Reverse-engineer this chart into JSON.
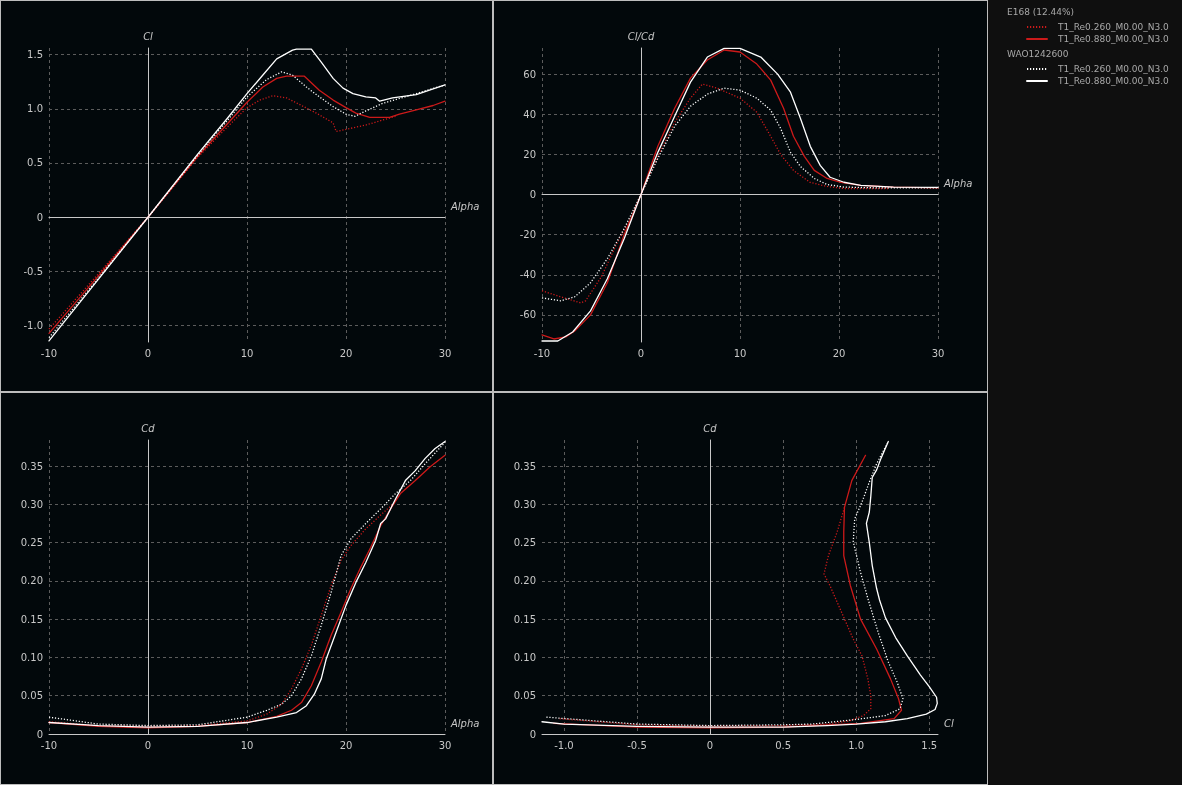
{
  "chart_data": [
    {
      "type": "line",
      "xlabel": "Alpha",
      "ylabel": "Cl",
      "xlim": [
        -10,
        30
      ],
      "xticks": [
        -10,
        0,
        10,
        20,
        30
      ],
      "ylim": [
        -1.15,
        1.56
      ],
      "yticks": [
        {
          "value": -1,
          "label": "-1.0"
        },
        -0.5,
        0,
        0.5,
        {
          "value": 1,
          "label": "1.0"
        },
        1.5
      ],
      "grid": true,
      "marker": "none",
      "series": [
        {
          "color": "#cc1a1a",
          "line_style": "dotted",
          "x": [
            -10,
            -5,
            0,
            5,
            8,
            10,
            11.3,
            12.6,
            14,
            15.3,
            17,
            18.7,
            19,
            20,
            22,
            25
          ],
          "values": [
            -1.03,
            -0.52,
            0,
            0.55,
            0.83,
            1.01,
            1.08,
            1.12,
            1.1,
            1.04,
            0.96,
            0.87,
            0.79,
            0.81,
            0.85,
            0.93
          ]
        },
        {
          "color": "#cc1a1a",
          "line_style": "solid",
          "x": [
            -10,
            -5,
            0,
            5,
            8,
            10,
            11.6,
            13,
            14,
            15.8,
            17.3,
            18.7,
            20,
            21,
            22.4,
            24.4,
            25.4,
            27.1,
            28.8,
            30
          ],
          "values": [
            -1.07,
            -0.54,
            0,
            0.56,
            0.86,
            1.06,
            1.2,
            1.28,
            1.3,
            1.3,
            1.17,
            1.08,
            1.01,
            0.96,
            0.92,
            0.92,
            0.95,
            0.99,
            1.03,
            1.07
          ]
        },
        {
          "color": "#ffffff",
          "line_style": "dotted",
          "x": [
            -10,
            -5,
            0,
            5,
            8,
            10,
            12,
            13.5,
            14.6,
            16,
            17.3,
            18.7,
            20,
            20.9,
            22,
            23.7,
            27.1,
            30
          ],
          "values": [
            -1.11,
            -0.56,
            0,
            0.57,
            0.89,
            1.11,
            1.27,
            1.34,
            1.31,
            1.2,
            1.11,
            1.02,
            0.95,
            0.93,
            0.98,
            1.05,
            1.14,
            1.22
          ]
        },
        {
          "color": "#ffffff",
          "line_style": "solid",
          "x": [
            -10,
            -5,
            0,
            5,
            8,
            10,
            11.5,
            13,
            14.6,
            15,
            16.5,
            17.5,
            18.7,
            19.7,
            20.7,
            22,
            23,
            23.4,
            24.7,
            27.1,
            30
          ],
          "values": [
            -1.14,
            -0.57,
            0,
            0.58,
            0.91,
            1.14,
            1.3,
            1.46,
            1.54,
            1.55,
            1.55,
            1.43,
            1.28,
            1.19,
            1.14,
            1.11,
            1.1,
            1.07,
            1.1,
            1.13,
            1.22
          ]
        }
      ]
    },
    {
      "type": "line",
      "xlabel": "Alpha",
      "ylabel": "Cl/Cd",
      "xlim": [
        -10,
        30
      ],
      "xticks": [
        -10,
        0,
        10,
        20,
        30
      ],
      "ylim": [
        -73.5,
        73
      ],
      "yticks": [
        -60,
        -40,
        -20,
        0,
        20,
        40,
        60
      ],
      "grid": true,
      "marker": "none",
      "legend": "top right",
      "annotations": [
        "E168 (12.44%)",
        "WAO1242600"
      ],
      "series": [
        {
          "name": "T1_Re0.260_M0.00_N3.0",
          "color": "#cc1a1a",
          "line_style": "dotted",
          "x": [
            -10,
            -8.1,
            -6.1,
            -5.6,
            -4,
            -2.4,
            -0.7,
            0,
            1.7,
            3.4,
            5,
            6.2,
            7.7,
            10,
            11.7,
            13.1,
            14.1,
            15.4,
            17.1,
            18.8,
            20.5,
            23.8,
            25
          ],
          "values": [
            -48,
            -51,
            -54,
            -53,
            -41,
            -24,
            -9,
            0,
            19,
            36,
            48,
            55,
            53,
            48,
            41,
            29,
            20,
            12,
            6,
            4,
            3,
            3,
            3
          ]
        },
        {
          "name": "T1_Re0.880_M0.00_N3.0",
          "color": "#cc1a1a",
          "line_style": "solid",
          "x": [
            -10,
            -8.8,
            -7.6,
            -6.7,
            -5.1,
            -3.4,
            -1.7,
            0,
            1.7,
            3.4,
            5,
            6.7,
            8.4,
            10,
            11.7,
            13.1,
            14.4,
            15.4,
            16.5,
            17.5,
            18.8,
            20.2,
            22.2,
            25.5,
            30
          ],
          "values": [
            -70,
            -72,
            -71,
            -68,
            -60,
            -44,
            -20,
            0,
            24,
            43,
            58,
            67,
            72,
            71,
            65,
            57,
            43,
            29,
            19,
            12,
            8,
            6,
            4.5,
            3.7,
            3.3
          ]
        },
        {
          "name": "T1_Re0.260_M0.00_N3.0",
          "color": "#ffffff",
          "line_style": "dotted",
          "x": [
            -10,
            -8.1,
            -6.7,
            -5.1,
            -3.4,
            -1.7,
            0,
            1.7,
            3.4,
            5,
            6.7,
            8.4,
            10,
            11.7,
            13.1,
            14.1,
            15.1,
            16.1,
            17.5,
            18.8,
            20.5,
            23.8,
            30
          ],
          "values": [
            -51.5,
            -53,
            -51,
            -44,
            -32,
            -17,
            0,
            18,
            34,
            44,
            50,
            53,
            52,
            48,
            42,
            33,
            21,
            14,
            8,
            5,
            3.7,
            3.3,
            3.3
          ]
        },
        {
          "name": "T1_Re0.880_M0.00_N3.0",
          "color": "#ffffff",
          "line_style": "solid",
          "x": [
            -10,
            -8.4,
            -6.9,
            -5.1,
            -3.4,
            -1.7,
            0,
            1.7,
            3.4,
            5,
            6.7,
            8.4,
            10,
            12.1,
            13.8,
            15.1,
            16.1,
            17.1,
            18.1,
            19.1,
            20.5,
            22.2,
            25.5,
            30
          ],
          "values": [
            -73,
            -73,
            -68.5,
            -58,
            -42,
            -22,
            0,
            21,
            39,
            56,
            68.5,
            72.8,
            72.8,
            68.5,
            60,
            51,
            38,
            24,
            14.5,
            8.6,
            6.1,
            4.5,
            3.7,
            3.5
          ]
        }
      ]
    },
    {
      "type": "line",
      "xlabel": "Alpha",
      "ylabel": "Cd",
      "xlim": [
        -10,
        30
      ],
      "xticks": [
        -10,
        0,
        10,
        20,
        30
      ],
      "ylim": [
        0,
        0.384
      ],
      "yticks": [
        0,
        0.05,
        {
          "value": 0.1,
          "label": "0.10"
        },
        0.15,
        {
          "value": 0.2,
          "label": "0.20"
        },
        0.25,
        {
          "value": 0.3,
          "label": "0.30"
        },
        0.35
      ],
      "grid": true,
      "marker": "none",
      "series": [
        {
          "color": "#cc1a1a",
          "line_style": "dotted",
          "x": [
            -10,
            -5,
            0,
            5,
            10,
            12,
            13.5,
            14.5,
            15.5,
            16.5,
            17.5,
            18.5,
            19.5,
            20.5,
            22,
            23.5,
            25
          ],
          "values": [
            0.016,
            0.011,
            0.01,
            0.011,
            0.017,
            0.026,
            0.039,
            0.059,
            0.085,
            0.116,
            0.155,
            0.194,
            0.227,
            0.246,
            0.268,
            0.286,
            0.303
          ]
        },
        {
          "color": "#cc1a1a",
          "line_style": "solid",
          "x": [
            -10,
            -5,
            0,
            5,
            10,
            13,
            14.5,
            15.5,
            16.5,
            17.5,
            18.5,
            19.5,
            20.5,
            21.5,
            22.5,
            23.5,
            24.5,
            25.5,
            27,
            28.5,
            30
          ],
          "values": [
            0.015,
            0.01,
            0.008,
            0.01,
            0.015,
            0.023,
            0.031,
            0.041,
            0.063,
            0.094,
            0.129,
            0.159,
            0.19,
            0.218,
            0.244,
            0.272,
            0.294,
            0.314,
            0.331,
            0.349,
            0.364
          ]
        },
        {
          "color": "#ffffff",
          "line_style": "dotted",
          "x": [
            -10,
            -5,
            0,
            5,
            10,
            12,
            13.5,
            14.5,
            15.5,
            16.5,
            17.5,
            18.5,
            19.5,
            20.5,
            22,
            23.5,
            25,
            26.5,
            28,
            30
          ],
          "values": [
            0.022,
            0.013,
            0.011,
            0.012,
            0.022,
            0.031,
            0.039,
            0.05,
            0.072,
            0.102,
            0.142,
            0.185,
            0.233,
            0.255,
            0.275,
            0.294,
            0.314,
            0.331,
            0.353,
            0.381
          ]
        },
        {
          "color": "#ffffff",
          "line_style": "solid",
          "x": [
            -10,
            -5,
            0,
            5,
            10,
            13,
            15,
            16,
            16.8,
            17.5,
            18,
            19,
            20,
            21,
            22,
            23,
            23.5,
            24,
            25,
            26,
            27,
            28,
            29,
            30
          ],
          "values": [
            0.015,
            0.011,
            0.009,
            0.01,
            0.015,
            0.022,
            0.028,
            0.037,
            0.052,
            0.072,
            0.098,
            0.133,
            0.168,
            0.198,
            0.224,
            0.253,
            0.275,
            0.281,
            0.307,
            0.331,
            0.344,
            0.36,
            0.373,
            0.382
          ]
        }
      ]
    },
    {
      "type": "line",
      "xlabel": "Cl",
      "ylabel": "Cd",
      "xlim": [
        -1.15,
        1.56
      ],
      "xticks": [
        {
          "value": -1,
          "label": "-1.0"
        },
        -0.5,
        0,
        0.5,
        {
          "value": 1,
          "label": "1.0"
        },
        1.5
      ],
      "ylim": [
        0,
        0.384
      ],
      "yticks": [
        0,
        0.05,
        {
          "value": 0.1,
          "label": "0.10"
        },
        0.15,
        {
          "value": 0.2,
          "label": "0.20"
        },
        0.25,
        {
          "value": 0.3,
          "label": "0.30"
        },
        0.35
      ],
      "grid": true,
      "marker": "none",
      "series": [
        {
          "color": "#cc1a1a",
          "line_style": "dotted",
          "x": [
            -1.03,
            -0.5,
            0,
            0.5,
            0.8,
            0.95,
            1.05,
            1.1,
            1.1,
            1.08,
            1.04,
            0.98,
            0.9,
            0.82,
            0.78,
            0.81,
            0.87,
            0.92
          ],
          "values": [
            0.02,
            0.012,
            0.01,
            0.011,
            0.013,
            0.017,
            0.024,
            0.033,
            0.05,
            0.072,
            0.102,
            0.124,
            0.159,
            0.194,
            0.209,
            0.233,
            0.264,
            0.296
          ]
        },
        {
          "color": "#cc1a1a",
          "line_style": "solid",
          "x": [
            -1.07,
            -0.5,
            0,
            0.5,
            1.03,
            1.26,
            1.31,
            1.29,
            1.235,
            1.14,
            1.03,
            0.96,
            0.915,
            0.915,
            0.92,
            0.97,
            1.064
          ],
          "values": [
            0.014,
            0.009,
            0.008,
            0.009,
            0.014,
            0.02,
            0.031,
            0.046,
            0.072,
            0.111,
            0.15,
            0.194,
            0.233,
            0.264,
            0.296,
            0.331,
            0.364
          ]
        },
        {
          "color": "#ffffff",
          "line_style": "dotted",
          "x": [
            -1.12,
            -0.5,
            0,
            0.5,
            0.7,
            1,
            1.2,
            1.3,
            1.32,
            1.28,
            1.22,
            1.15,
            1.08,
            1.03,
            0.98,
            0.99,
            1.04,
            1.09,
            1.14,
            1.22
          ],
          "values": [
            0.022,
            0.013,
            0.011,
            0.012,
            0.013,
            0.019,
            0.024,
            0.033,
            0.046,
            0.068,
            0.094,
            0.133,
            0.177,
            0.211,
            0.251,
            0.281,
            0.303,
            0.329,
            0.353,
            0.382
          ]
        },
        {
          "color": "#ffffff",
          "line_style": "solid",
          "x": [
            -1.15,
            -1,
            -0.5,
            0,
            0.5,
            0.8,
            1,
            1.2,
            1.35,
            1.48,
            1.54,
            1.555,
            1.55,
            1.5,
            1.44,
            1.35,
            1.27,
            1.2,
            1.16,
            1.14,
            1.11,
            1.09,
            1.07,
            1.09,
            1.1,
            1.11,
            1.14,
            1.17,
            1.22
          ],
          "values": [
            0.016,
            0.013,
            0.01,
            0.009,
            0.009,
            0.011,
            0.013,
            0.016,
            0.02,
            0.026,
            0.032,
            0.04,
            0.048,
            0.062,
            0.077,
            0.102,
            0.126,
            0.152,
            0.175,
            0.19,
            0.22,
            0.25,
            0.275,
            0.29,
            0.31,
            0.335,
            0.345,
            0.36,
            0.382
          ]
        }
      ]
    }
  ]
}
